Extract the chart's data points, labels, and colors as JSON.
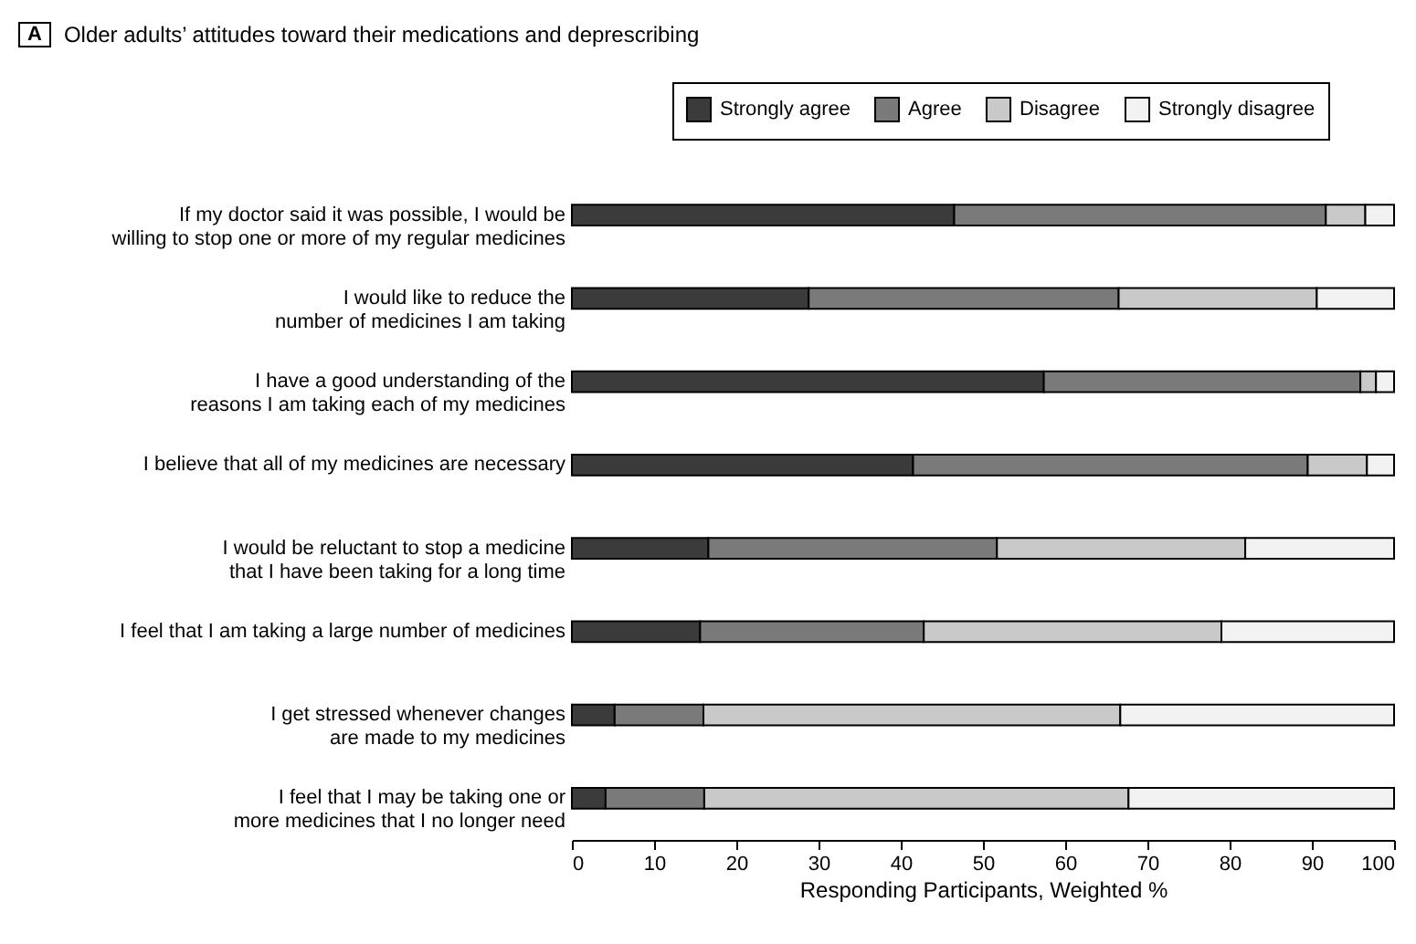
{
  "chart_data": {
    "type": "bar",
    "orientation": "horizontal",
    "stacked": true,
    "title": "Older adults’ attitudes toward their medications and deprescribing",
    "annotations": [
      "A"
    ],
    "xlabel": "Responding Participants, Weighted %",
    "categories": [
      "If my doctor said it was possible, I would be willing to stop one or more of my regular medicines",
      "I would like to reduce the number of medicines I am taking",
      "I have a good understanding of the reasons I am taking each of my medicines",
      "I believe that all of my medicines are necessary",
      "I would be reluctant to stop a medicine that I have been taking for a long time",
      "I feel that I am taking a large number of medicines",
      "I get stressed whenever changes are made to my medicines",
      "I feel that I may be taking one or more medicines that I no longer need"
    ],
    "series": [
      {
        "name": "Strongly agree",
        "color": "#3b3b3b",
        "values": [
          46.5,
          28.8,
          57.4,
          41.5,
          16.6,
          15.6,
          5.2,
          4.1
        ]
      },
      {
        "name": "Agree",
        "color": "#7a7a7a",
        "values": [
          45.2,
          37.7,
          38.5,
          48.0,
          35.1,
          27.2,
          10.8,
          12.0
        ]
      },
      {
        "name": "Disagree",
        "color": "#c9c9c9",
        "values": [
          4.8,
          24.1,
          1.9,
          7.2,
          30.2,
          36.2,
          50.7,
          51.6
        ]
      },
      {
        "name": "Strongly disagree",
        "color": "#f2f2f2",
        "values": [
          3.5,
          9.4,
          2.2,
          3.3,
          18.1,
          21.0,
          33.3,
          32.3
        ]
      }
    ],
    "xlim": [
      0,
      100
    ],
    "xticks": [
      0,
      10,
      20,
      30,
      40,
      50,
      60,
      70,
      80,
      90,
      100
    ],
    "grid": false,
    "legend": "top right"
  }
}
